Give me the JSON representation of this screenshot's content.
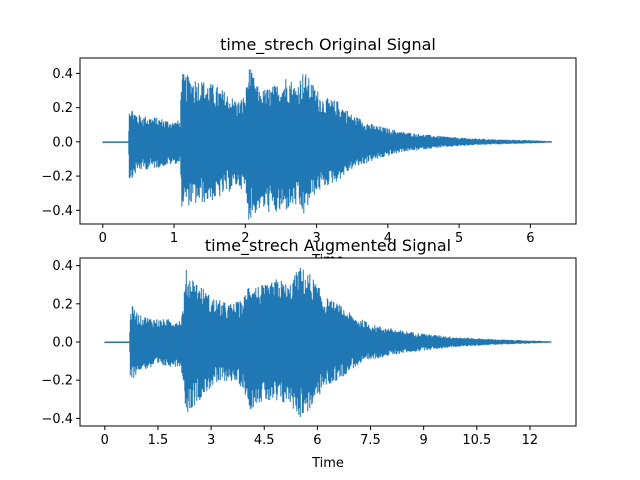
{
  "chart_data": [
    {
      "type": "line",
      "title": "time_strech Original Signal",
      "xlabel": "Time",
      "ylabel": "",
      "xlim": [
        -0.32,
        6.64
      ],
      "ylim": [
        -0.48,
        0.49
      ],
      "xticks": [
        0,
        1,
        2,
        3,
        4,
        5,
        6
      ],
      "xtick_labels": [
        "0",
        "1",
        "2",
        "3",
        "4",
        "5",
        "6"
      ],
      "yticks": [
        -0.4,
        -0.2,
        0.0,
        0.2,
        0.4
      ],
      "ytick_labels": [
        "−0.4",
        "−0.2",
        "0.0",
        "0.2",
        "0.4"
      ],
      "grid": false,
      "series": [
        {
          "color": "#1f77b4",
          "x": [
            0,
            0.36,
            0.37,
            0.5,
            0.8,
            1.0,
            1.09,
            1.1,
            1.11,
            1.3,
            1.6,
            1.9,
            2.0,
            2.05,
            2.2,
            2.45,
            2.6,
            2.7,
            2.82,
            2.95,
            3.1,
            3.3,
            3.5,
            3.8,
            4.2,
            4.6,
            5.0,
            5.5,
            6.0,
            6.3
          ],
          "upper": [
            0.0,
            0.0,
            0.22,
            0.16,
            0.14,
            0.12,
            0.13,
            0.42,
            0.4,
            0.38,
            0.33,
            0.24,
            0.28,
            0.45,
            0.3,
            0.34,
            0.4,
            0.33,
            0.42,
            0.34,
            0.26,
            0.24,
            0.16,
            0.1,
            0.06,
            0.04,
            0.025,
            0.015,
            0.01,
            0.005
          ],
          "lower": [
            0.0,
            0.0,
            -0.23,
            -0.17,
            -0.15,
            -0.13,
            -0.13,
            -0.39,
            -0.38,
            -0.37,
            -0.34,
            -0.26,
            -0.3,
            -0.46,
            -0.4,
            -0.43,
            -0.4,
            -0.38,
            -0.44,
            -0.32,
            -0.27,
            -0.23,
            -0.16,
            -0.11,
            -0.06,
            -0.04,
            -0.025,
            -0.015,
            -0.01,
            -0.005
          ]
        }
      ]
    },
    {
      "type": "line",
      "title": "time_strech Augmented Signal",
      "xlabel": "Time",
      "ylabel": "",
      "xlim": [
        -0.7,
        13.3
      ],
      "ylim": [
        -0.44,
        0.44
      ],
      "xticks": [
        0,
        1.5,
        3,
        4.5,
        6,
        7.5,
        9,
        10.5,
        12
      ],
      "xtick_labels": [
        "0",
        "1.5",
        "3",
        "4.5",
        "6",
        "7.5",
        "9",
        "10.5",
        "12"
      ],
      "yticks": [
        -0.4,
        -0.2,
        0.0,
        0.2,
        0.4
      ],
      "ytick_labels": [
        "−0.4",
        "−0.2",
        "0.0",
        "0.2",
        "0.4"
      ],
      "grid": false,
      "series": [
        {
          "color": "#1f77b4",
          "x": [
            0,
            0.7,
            0.72,
            1.0,
            1.6,
            2.15,
            2.2,
            2.3,
            2.6,
            3.0,
            3.5,
            3.9,
            4.1,
            4.3,
            4.6,
            4.9,
            5.2,
            5.5,
            5.8,
            6.2,
            6.6,
            7.0,
            7.6,
            8.4,
            9.2,
            10.0,
            11.0,
            12.0,
            12.6
          ],
          "upper": [
            0.0,
            0.0,
            0.2,
            0.14,
            0.12,
            0.12,
            0.18,
            0.38,
            0.32,
            0.24,
            0.2,
            0.22,
            0.34,
            0.3,
            0.3,
            0.34,
            0.3,
            0.4,
            0.36,
            0.24,
            0.2,
            0.14,
            0.09,
            0.06,
            0.04,
            0.025,
            0.015,
            0.008,
            0.004
          ],
          "lower": [
            0.0,
            0.0,
            -0.21,
            -0.15,
            -0.13,
            -0.13,
            -0.2,
            -0.38,
            -0.32,
            -0.24,
            -0.2,
            -0.24,
            -0.36,
            -0.32,
            -0.32,
            -0.34,
            -0.32,
            -0.4,
            -0.36,
            -0.24,
            -0.2,
            -0.14,
            -0.09,
            -0.06,
            -0.04,
            -0.025,
            -0.015,
            -0.008,
            -0.004
          ]
        }
      ]
    }
  ]
}
